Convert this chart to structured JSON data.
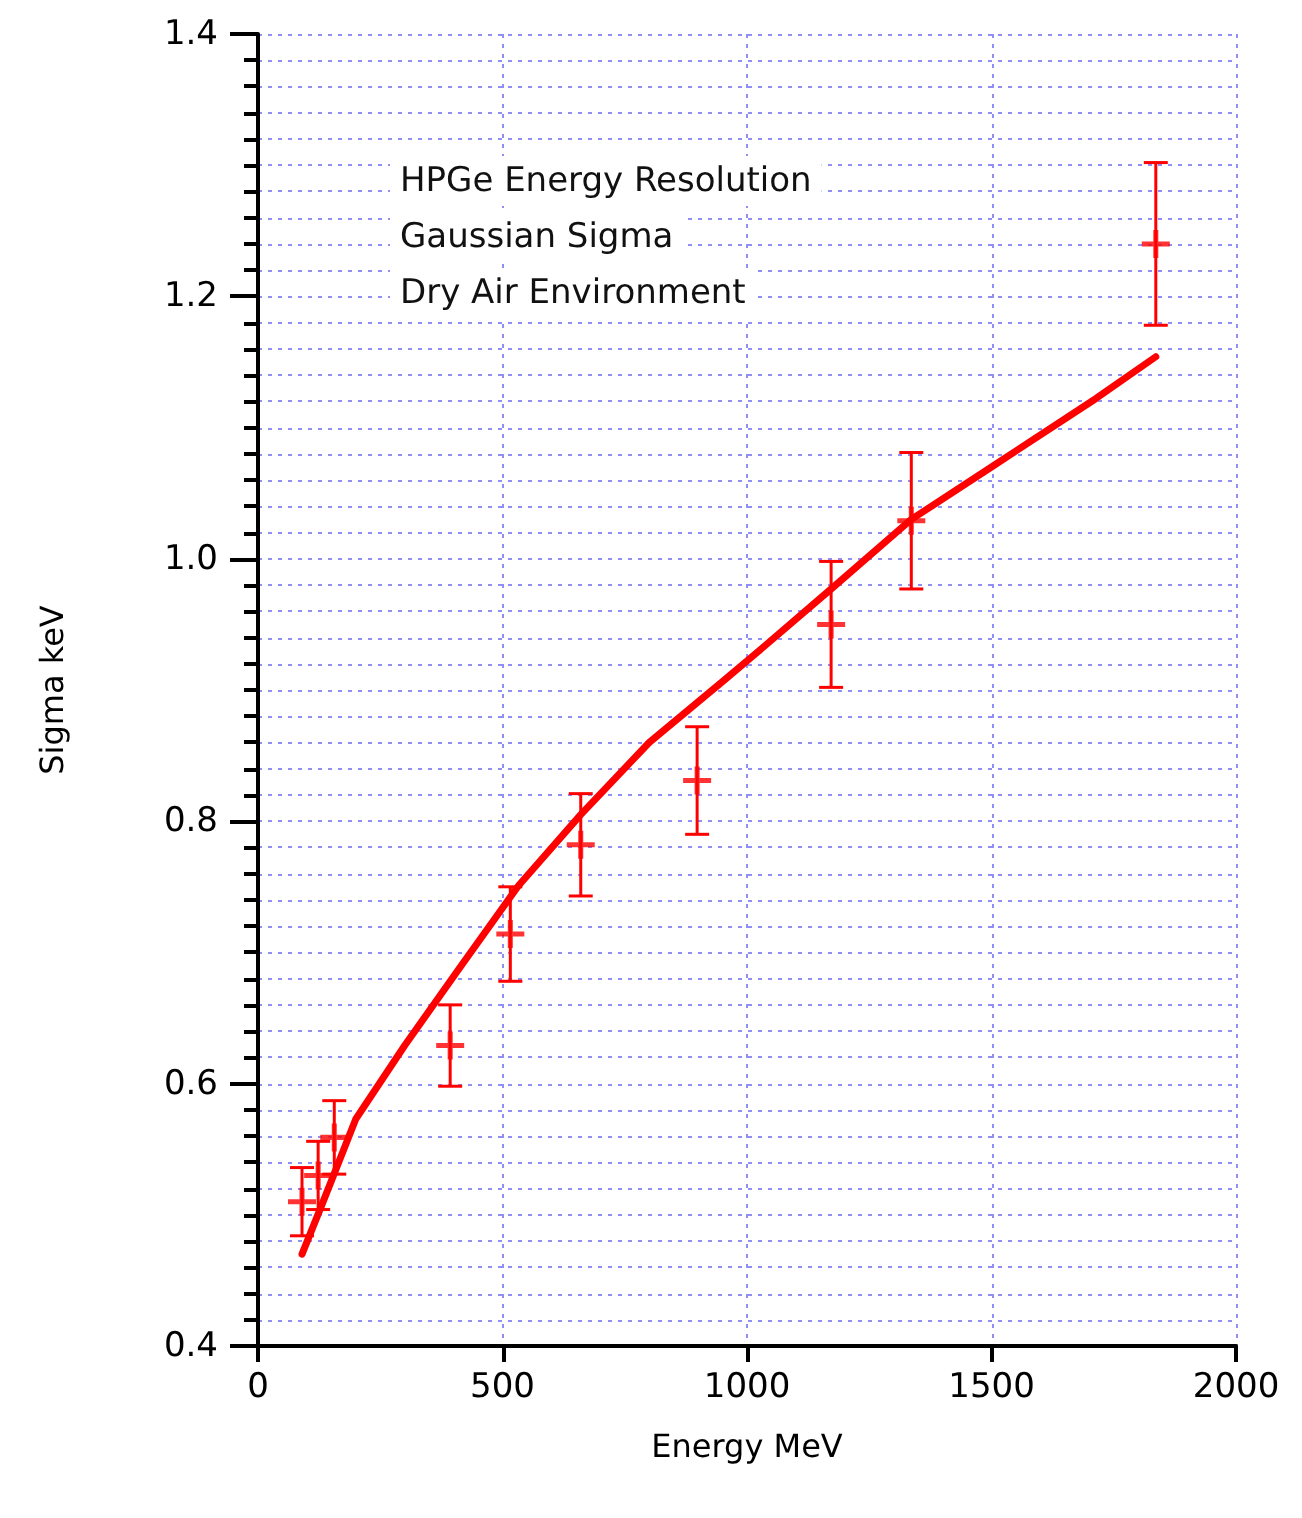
{
  "chart_data": {
    "type": "scatter",
    "xlabel": "Energy MeV",
    "ylabel": "Sigma keV",
    "annotations": [
      "HPGe Energy Resolution",
      "Gaussian Sigma",
      "Dry Air Environment"
    ],
    "xlim": [
      0,
      2000
    ],
    "xticks": [
      0,
      500,
      1000,
      1500,
      2000
    ],
    "ylim": [
      0.4,
      1.4
    ],
    "yticks": [
      {
        "value": 0.4,
        "label": "0.4"
      },
      {
        "value": 0.6,
        "label": "0.6"
      },
      {
        "value": 0.8,
        "label": "0.8"
      },
      {
        "value": 1.0,
        "label": "1.0"
      },
      {
        "value": 1.2,
        "label": "1.2"
      },
      {
        "value": 1.4,
        "label": "1.4"
      }
    ],
    "grid": true,
    "series": [
      {
        "color": "#ff0000",
        "marker": "cross",
        "x": [
          90,
          123,
          156,
          393,
          516,
          660,
          898,
          1172,
          1336,
          1836
        ],
        "values": [
          0.51,
          0.53,
          0.559,
          0.629,
          0.714,
          0.782,
          0.831,
          0.95,
          1.029,
          1.24
        ],
        "errors": [
          0.026,
          0.026,
          0.028,
          0.031,
          0.036,
          0.039,
          0.041,
          0.048,
          0.052,
          0.062
        ]
      },
      {
        "type": "line",
        "color": "#ff0000",
        "marker": "none",
        "x": [
          90,
          130,
          200,
          300,
          410,
          533,
          660,
          800,
          955,
          1025,
          1172,
          1336,
          1500,
          1713,
          1836
        ],
        "values": [
          0.47,
          0.507,
          0.573,
          0.629,
          0.687,
          0.751,
          0.805,
          0.86,
          0.908,
          0.93,
          0.977,
          1.03,
          1.07,
          1.122,
          1.154
        ]
      }
    ]
  }
}
